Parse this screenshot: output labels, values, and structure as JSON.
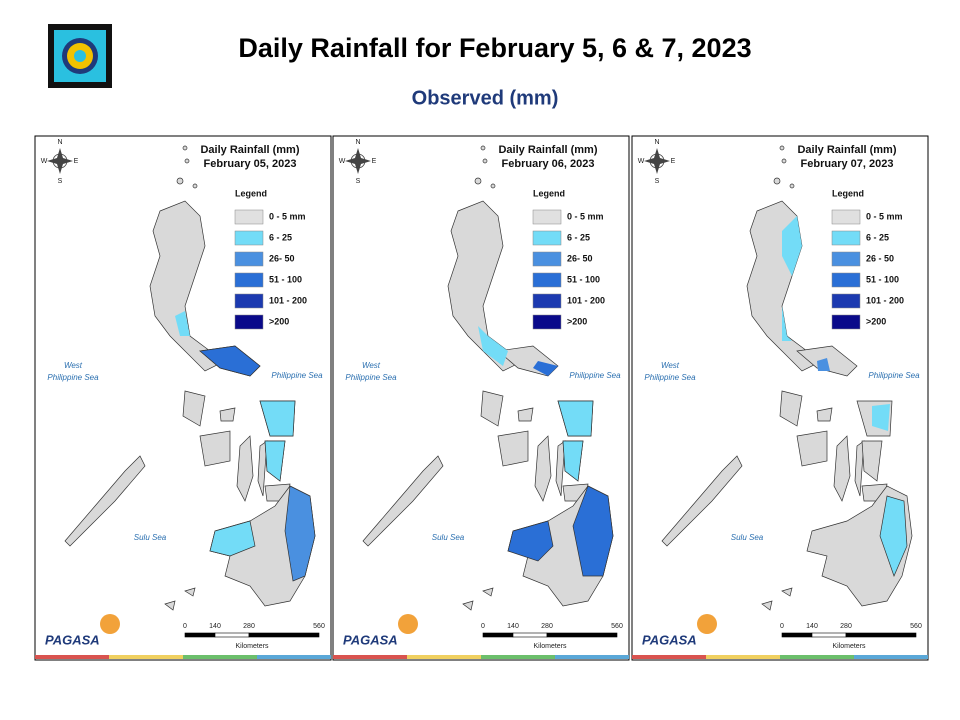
{
  "header": {
    "title": "Daily Rainfall for February 5, 6 & 7, 2023",
    "subtitle": "Observed (mm)"
  },
  "panels": [
    {
      "title": "Daily Rainfall (mm)",
      "date": "February 05, 2023",
      "legend_title": "Legend",
      "legend": [
        "0 - 5 mm",
        "6 - 25",
        "26- 50",
        "51 - 100",
        "101 - 200",
        ">200"
      ],
      "seas": {
        "west": [
          "West",
          "Philippine Sea"
        ],
        "east": "Philippine Sea",
        "sulu": "Sulu Sea"
      },
      "compass": [
        "N",
        "E",
        "S",
        "W"
      ],
      "scale": [
        0,
        140,
        280,
        560
      ],
      "scale_unit": "Kilometers",
      "logo": "PAGASA"
    },
    {
      "title": "Daily Rainfall (mm)",
      "date": "February 06, 2023",
      "legend_title": "Legend",
      "legend": [
        "0 - 5 mm",
        "6 - 25",
        "26- 50",
        "51 - 100",
        "101 - 200",
        ">200"
      ],
      "seas": {
        "west": [
          "West",
          "Philippine Sea"
        ],
        "east": "Philippine Sea",
        "sulu": "Sulu Sea"
      },
      "compass": [
        "N",
        "E",
        "S",
        "W"
      ],
      "scale": [
        0,
        140,
        280,
        560
      ],
      "scale_unit": "Kilometers",
      "logo": "PAGASA"
    },
    {
      "title": "Daily Rainfall (mm)",
      "date": "February 07, 2023",
      "legend_title": "Legend",
      "legend": [
        "0 - 5 mm",
        "6 - 25",
        "26 - 50",
        "51 - 100",
        "101 - 200",
        ">200"
      ],
      "seas": {
        "west": [
          "West",
          "Philippine Sea"
        ],
        "east": "Philippine Sea",
        "sulu": "Sulu Sea"
      },
      "compass": [
        "N",
        "E",
        "S",
        "W"
      ],
      "scale": [
        0,
        140,
        280,
        560
      ],
      "scale_unit": "Kilometers",
      "logo": "PAGASA"
    }
  ]
}
